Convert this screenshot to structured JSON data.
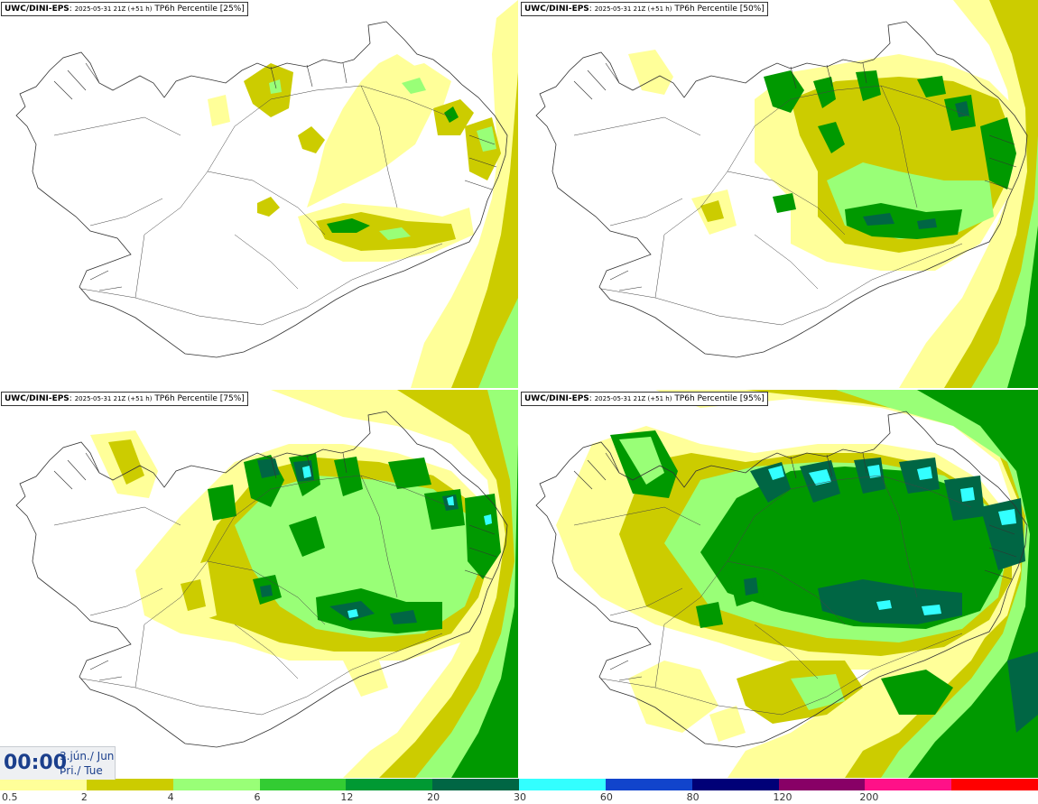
{
  "panels": [
    {
      "model": "UWC/DINI-EPS",
      "run": "2025-05-31 21Z (+51 h)",
      "field": "TP6h Percentile [25%]",
      "percentile": 25
    },
    {
      "model": "UWC/DINI-EPS",
      "run": "2025-05-31 21Z (+51 h)",
      "field": "TP6h Percentile [50%]",
      "percentile": 50
    },
    {
      "model": "UWC/DINI-EPS",
      "run": "2025-05-31 21Z (+51 h)",
      "field": "TP6h Percentile [75%]",
      "percentile": 75
    },
    {
      "model": "UWC/DINI-EPS",
      "run": "2025-05-31 21Z (+51 h)",
      "field": "TP6h Percentile [95%]",
      "percentile": 95
    }
  ],
  "valid_time": {
    "time": "00:00",
    "date_line": "3.jún./ Jun",
    "day_line": "Þri./ Tue"
  },
  "legend": {
    "thresholds": [
      "0.5",
      "2",
      "4",
      "6",
      "12",
      "20",
      "30",
      "60",
      "80",
      "120",
      "200"
    ],
    "colors": [
      "#ffff99",
      "#cccc00",
      "#99ff77",
      "#33cc33",
      "#009933",
      "#006644",
      "#33ffff",
      "#1144cc",
      "#000077",
      "#880066",
      "#ff1188",
      "#ff0000"
    ]
  },
  "map_colors": {
    "land": "#ffffff",
    "outline": "#333333",
    "light_yellow": "#ffff99",
    "olive": "#cccc00",
    "light_green": "#99ff77",
    "green": "#009900",
    "dark_green": "#006644",
    "cyan": "#33ffff"
  }
}
